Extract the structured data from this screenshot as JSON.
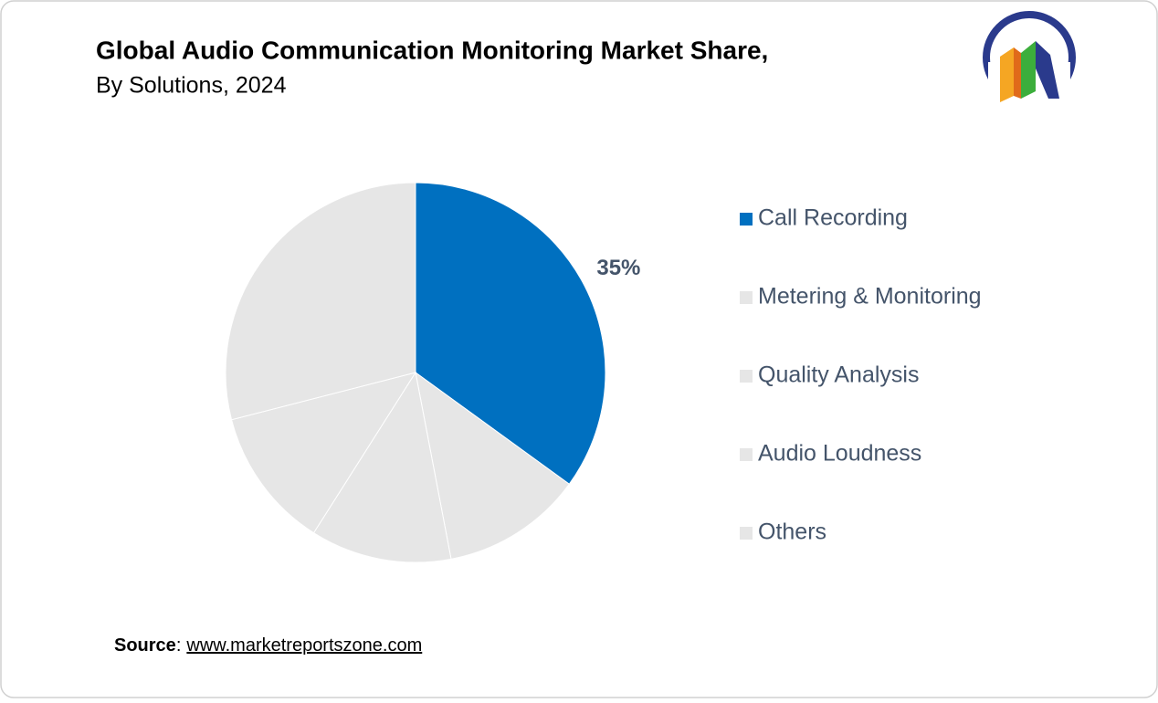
{
  "chart_data": {
    "type": "pie",
    "title": "Global Audio Communication Monitoring Market Share,",
    "subtitle": "By Solutions, 2024",
    "categories": [
      "Call Recording",
      "Metering & Monitoring",
      "Quality Analysis",
      "Audio Loudness",
      "Others"
    ],
    "values": [
      35,
      12,
      12,
      12,
      29
    ],
    "value_labels": [
      "35%",
      null,
      null,
      null,
      null
    ],
    "colors": [
      "#0070c0",
      "#e6e6e6",
      "#e6e6e6",
      "#e6e6e6",
      "#e6e6e6"
    ],
    "legend": "right"
  },
  "source": {
    "label": "Source",
    "separator": ":",
    "url": "www.marketreportszone.com"
  }
}
